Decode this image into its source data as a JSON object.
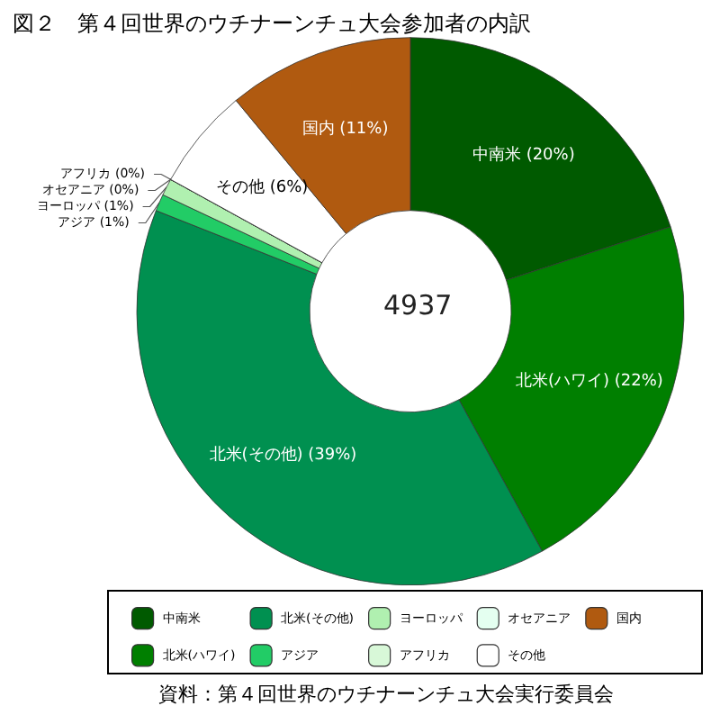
{
  "chart_data": {
    "type": "donut",
    "title": "図２　第４回世界のウチナーンチュ大会参加者の内訳",
    "categories": [
      "中南米",
      "北米(ハワイ)",
      "北米(その他)",
      "アジア",
      "ヨーロッパ",
      "アフリカ",
      "オセアニア",
      "その他",
      "国内"
    ],
    "values": [
      20,
      22,
      39,
      1,
      1,
      0,
      0,
      6,
      11
    ],
    "colors": [
      "#005a00",
      "#007f00",
      "#009050",
      "#22cc66",
      "#b0f0b0",
      "#d8f8d8",
      "#e4fff0",
      "#ffffff",
      "#b05a10"
    ],
    "value_labels": [
      "中南米 (20%)",
      "北米(ハワイ) (22%)",
      "北米(その他) (39%)",
      "アジア (1%)",
      "ヨーロッパ (1%)",
      "アフリカ (0%)",
      "オセアニア (0%)",
      "その他 (6%)",
      "国内 (11%)"
    ],
    "annotations": [
      "4937",
      "資料：第４回世界のウチナーンチュ大会実行委員会"
    ],
    "legend": "bottom"
  }
}
